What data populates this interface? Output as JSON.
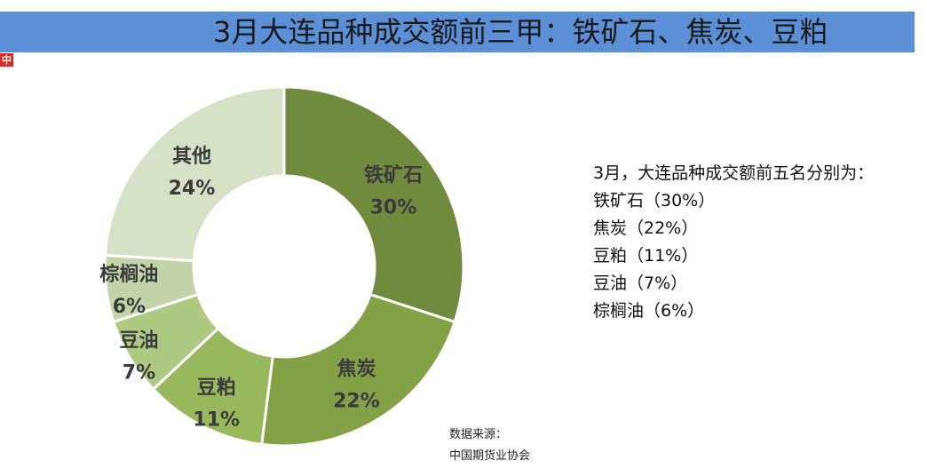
{
  "header": {
    "title": "3月大连品种成交额前三甲：铁矿石、焦炭、豆粕"
  },
  "logo": {
    "text": "中"
  },
  "summary": {
    "heading": "3月，大连品种成交额前五名分别为：",
    "lines": [
      "铁矿石（30%）",
      "焦炭（22%）",
      "豆粕（11%）",
      "豆油（7%）",
      "棕榈油（6%）"
    ]
  },
  "source": {
    "label": "数据来源：",
    "org": "中国期货业协会"
  },
  "chart_data": {
    "type": "pie",
    "donut": true,
    "categories": [
      "铁矿石",
      "焦炭",
      "豆粕",
      "豆油",
      "棕榈油",
      "其他"
    ],
    "values": [
      30,
      22,
      11,
      7,
      6,
      24
    ],
    "value_labels": [
      "30%",
      "22%",
      "11%",
      "7%",
      "6%",
      "24%"
    ],
    "colors": [
      "#718b3e",
      "#83a246",
      "#98b85d",
      "#aec982",
      "#c3d5a8",
      "#d6e2c6"
    ],
    "title": "",
    "legend": "none"
  }
}
